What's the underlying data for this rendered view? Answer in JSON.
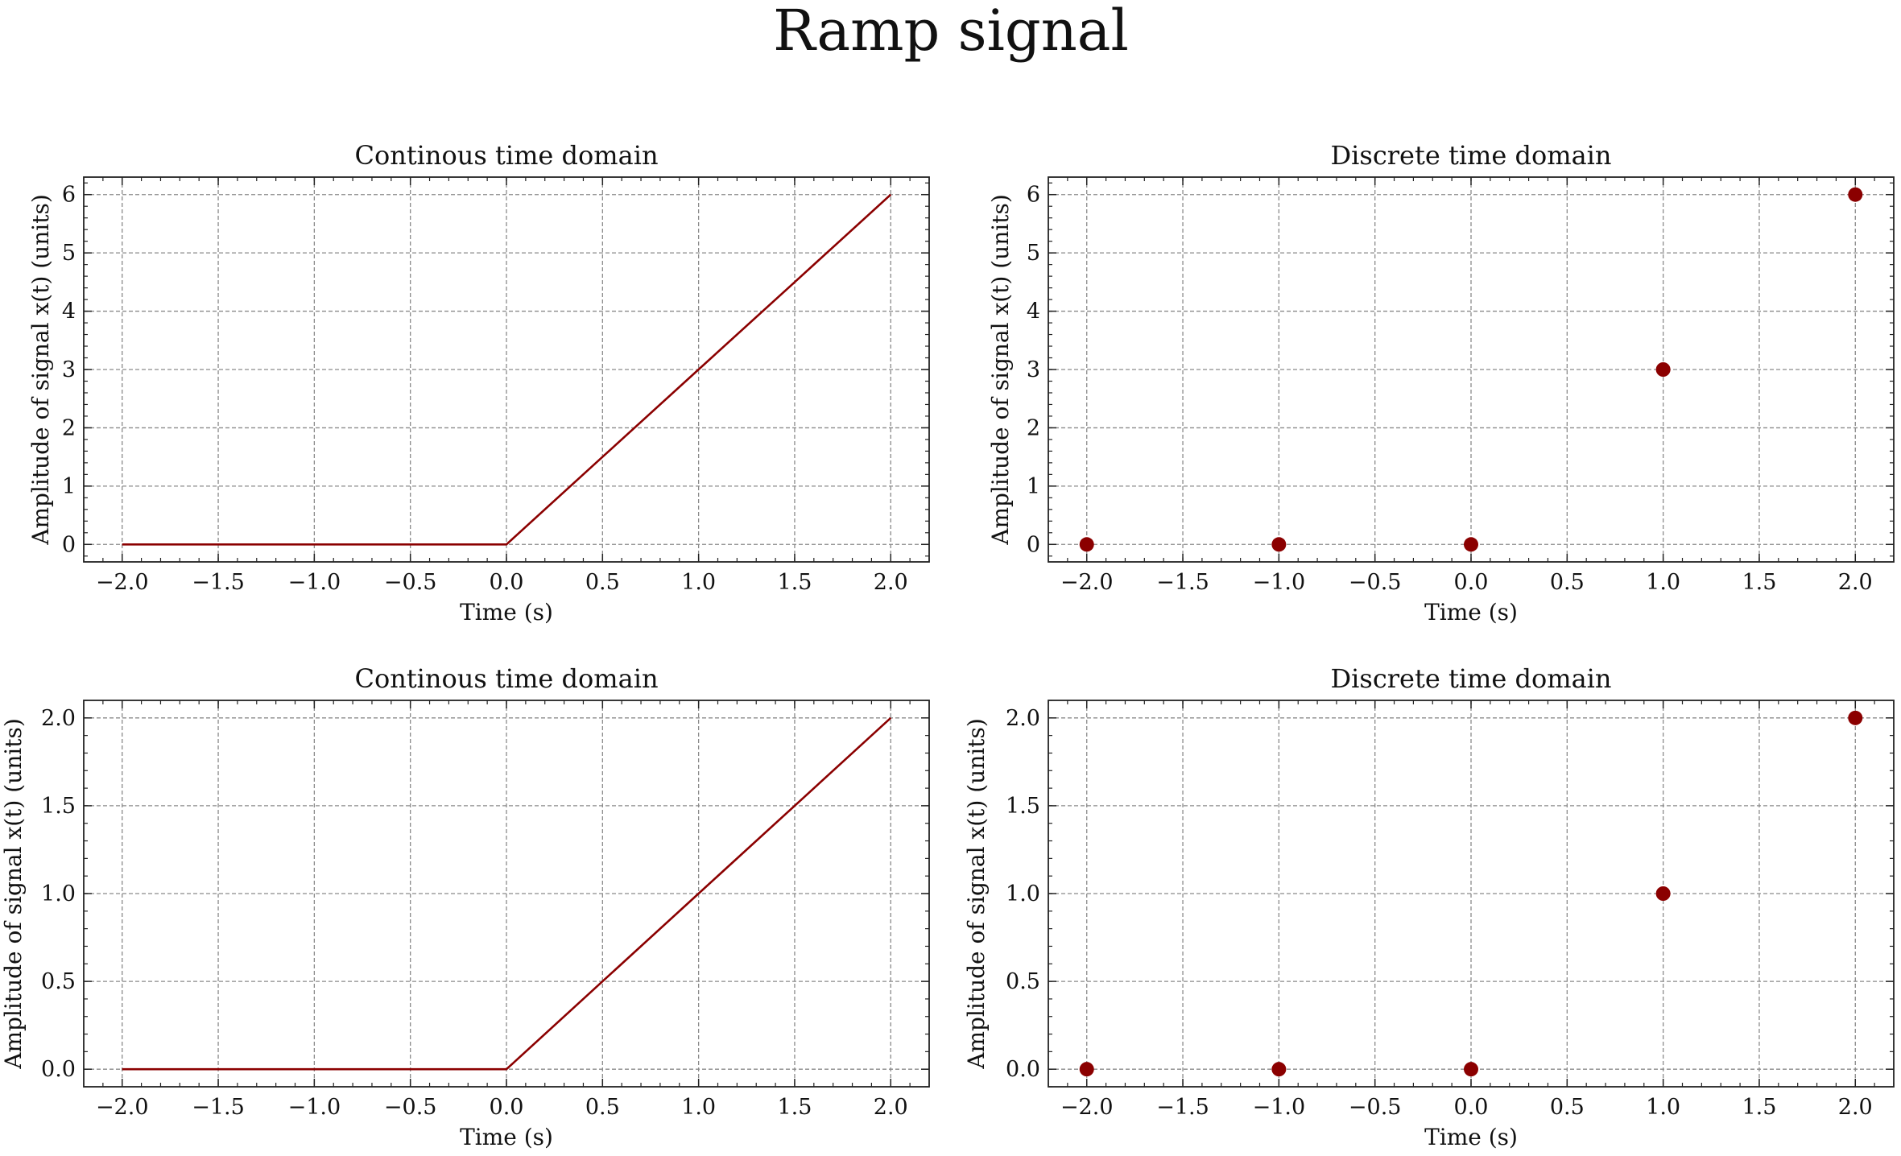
{
  "figure": {
    "suptitle": "Ramp signal"
  },
  "style": {
    "line_color": "#8b0000",
    "marker_color": "#8b0000",
    "grid_color": "#8a8a8a",
    "axes_color": "#222222"
  },
  "chart_data": [
    {
      "type": "line",
      "title": "Continous time domain",
      "xlabel": "Time (s)",
      "ylabel": "Amplitude of signal x(t) (units)",
      "xlim": [
        -2.2,
        2.2
      ],
      "ylim": [
        -0.3,
        6.3
      ],
      "xticks": [
        -2.0,
        -1.5,
        -1.0,
        -0.5,
        0.0,
        0.5,
        1.0,
        1.5,
        2.0
      ],
      "xticklabels": [
        "−2.0",
        "−1.5",
        "−1.0",
        "−0.5",
        "0.0",
        "0.5",
        "1.0",
        "1.5",
        "2.0"
      ],
      "yticks": [
        0,
        1,
        2,
        3,
        4,
        5,
        6
      ],
      "yticklabels": [
        "0",
        "1",
        "2",
        "3",
        "4",
        "5",
        "6"
      ],
      "grid": true,
      "series": [
        {
          "x": [
            -2.0,
            -1.0,
            0.0,
            0.05,
            0.5,
            1.0,
            1.5,
            2.0
          ],
          "y": [
            0.0,
            0.0,
            0.0,
            0.15,
            1.5,
            3.0,
            4.5,
            6.0
          ]
        }
      ]
    },
    {
      "type": "scatter",
      "title": "Discrete time domain",
      "xlabel": "Time (s)",
      "ylabel": "Amplitude of signal x(t) (units)",
      "xlim": [
        -2.2,
        2.2
      ],
      "ylim": [
        -0.3,
        6.3
      ],
      "xticks": [
        -2.0,
        -1.5,
        -1.0,
        -0.5,
        0.0,
        0.5,
        1.0,
        1.5,
        2.0
      ],
      "xticklabels": [
        "−2.0",
        "−1.5",
        "−1.0",
        "−0.5",
        "0.0",
        "0.5",
        "1.0",
        "1.5",
        "2.0"
      ],
      "yticks": [
        0,
        1,
        2,
        3,
        4,
        5,
        6
      ],
      "yticklabels": [
        "0",
        "1",
        "2",
        "3",
        "4",
        "5",
        "6"
      ],
      "grid": true,
      "series": [
        {
          "x": [
            -2,
            -1,
            0,
            1,
            2
          ],
          "y": [
            0,
            0,
            0,
            3,
            6
          ]
        }
      ]
    },
    {
      "type": "line",
      "title": "Continous time domain",
      "xlabel": "Time (s)",
      "ylabel": "Amplitude of signal x(t) (units)",
      "xlim": [
        -2.2,
        2.2
      ],
      "ylim": [
        -0.1,
        2.1
      ],
      "xticks": [
        -2.0,
        -1.5,
        -1.0,
        -0.5,
        0.0,
        0.5,
        1.0,
        1.5,
        2.0
      ],
      "xticklabels": [
        "−2.0",
        "−1.5",
        "−1.0",
        "−0.5",
        "0.0",
        "0.5",
        "1.0",
        "1.5",
        "2.0"
      ],
      "yticks": [
        0.0,
        0.5,
        1.0,
        1.5,
        2.0
      ],
      "yticklabels": [
        "0.0",
        "0.5",
        "1.0",
        "1.5",
        "2.0"
      ],
      "grid": true,
      "series": [
        {
          "x": [
            -2.0,
            -1.0,
            0.0,
            0.05,
            0.5,
            1.0,
            1.5,
            2.0
          ],
          "y": [
            0.0,
            0.0,
            0.0,
            0.05,
            0.5,
            1.0,
            1.5,
            2.0
          ]
        }
      ]
    },
    {
      "type": "scatter",
      "title": "Discrete time domain",
      "xlabel": "Time (s)",
      "ylabel": "Amplitude of signal x(t) (units)",
      "xlim": [
        -2.2,
        2.2
      ],
      "ylim": [
        -0.1,
        2.1
      ],
      "xticks": [
        -2.0,
        -1.5,
        -1.0,
        -0.5,
        0.0,
        0.5,
        1.0,
        1.5,
        2.0
      ],
      "xticklabels": [
        "−2.0",
        "−1.5",
        "−1.0",
        "−0.5",
        "0.0",
        "0.5",
        "1.0",
        "1.5",
        "2.0"
      ],
      "yticks": [
        0.0,
        0.5,
        1.0,
        1.5,
        2.0
      ],
      "yticklabels": [
        "0.0",
        "0.5",
        "1.0",
        "1.5",
        "2.0"
      ],
      "grid": true,
      "series": [
        {
          "x": [
            -2,
            -1,
            0,
            1,
            2
          ],
          "y": [
            0,
            0,
            0,
            1,
            2
          ]
        }
      ]
    }
  ]
}
